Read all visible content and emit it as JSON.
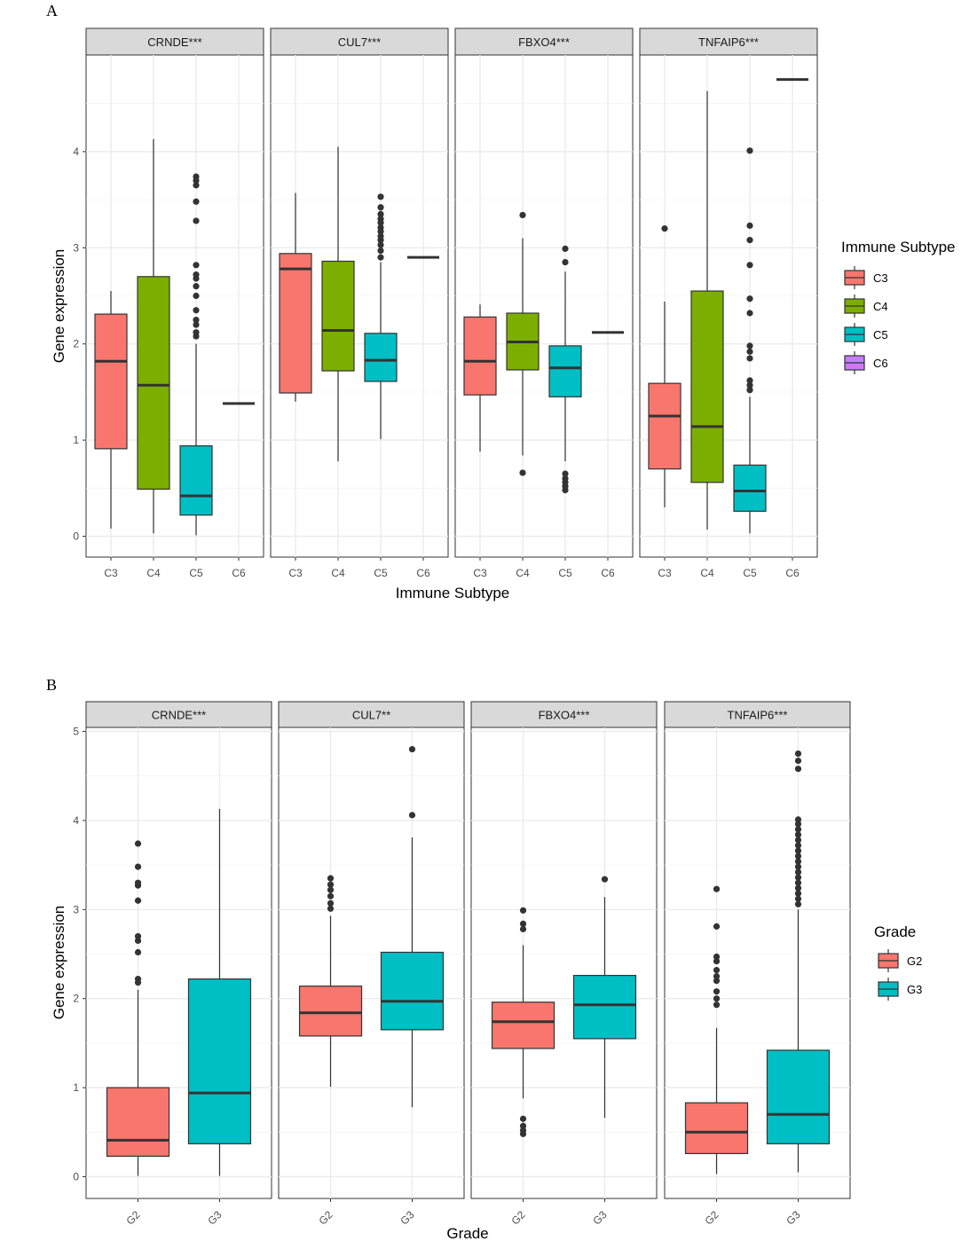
{
  "chart_data": [
    {
      "type": "box",
      "panel_label": "A",
      "xlabel": "Immune Subtype",
      "ylabel": "Gene expression",
      "ylim": [
        -0.2,
        5.0
      ],
      "yticks": [
        0,
        1,
        2,
        3,
        4
      ],
      "categories": [
        "C3",
        "C4",
        "C5",
        "C6"
      ],
      "legend": {
        "title": "Immune Subtype",
        "position": "right",
        "items": [
          {
            "label": "C3",
            "color": "#F8766D"
          },
          {
            "label": "C4",
            "color": "#7CAE00"
          },
          {
            "label": "C5",
            "color": "#00BFC4"
          },
          {
            "label": "C6",
            "color": "#C77CFF"
          }
        ]
      },
      "facets": [
        {
          "title": "CRNDE***",
          "boxes": [
            {
              "category": "C3",
              "lower_whisker": 0.08,
              "q1": 0.91,
              "median": 1.82,
              "q3": 2.31,
              "upper_whisker": 2.55,
              "outliers": []
            },
            {
              "category": "C4",
              "lower_whisker": 0.03,
              "q1": 0.49,
              "median": 1.57,
              "q3": 2.7,
              "upper_whisker": 4.13,
              "outliers": []
            },
            {
              "category": "C5",
              "lower_whisker": 0.01,
              "q1": 0.22,
              "median": 0.42,
              "q3": 0.94,
              "upper_whisker": 2.0,
              "outliers": [
                2.08,
                2.12,
                2.2,
                2.25,
                2.35,
                2.5,
                2.6,
                2.68,
                2.72,
                2.82,
                3.28,
                3.48,
                3.65,
                3.7,
                3.74
              ]
            },
            {
              "category": "C6",
              "lower_whisker": 1.38,
              "q1": 1.38,
              "median": 1.38,
              "q3": 1.38,
              "upper_whisker": 1.38,
              "outliers": []
            }
          ]
        },
        {
          "title": "CUL7***",
          "boxes": [
            {
              "category": "C3",
              "lower_whisker": 1.4,
              "q1": 1.49,
              "median": 2.78,
              "q3": 2.94,
              "upper_whisker": 3.57,
              "outliers": []
            },
            {
              "category": "C4",
              "lower_whisker": 0.78,
              "q1": 1.72,
              "median": 2.14,
              "q3": 2.86,
              "upper_whisker": 4.05,
              "outliers": []
            },
            {
              "category": "C5",
              "lower_whisker": 1.01,
              "q1": 1.61,
              "median": 1.83,
              "q3": 2.11,
              "upper_whisker": 2.85,
              "outliers": [
                2.9,
                2.97,
                3.03,
                3.08,
                3.12,
                3.17,
                3.21,
                3.26,
                3.3,
                3.35,
                3.42,
                3.53
              ]
            },
            {
              "category": "C6",
              "lower_whisker": 2.9,
              "q1": 2.9,
              "median": 2.9,
              "q3": 2.9,
              "upper_whisker": 2.9,
              "outliers": []
            }
          ]
        },
        {
          "title": "FBXO4***",
          "boxes": [
            {
              "category": "C3",
              "lower_whisker": 0.88,
              "q1": 1.47,
              "median": 1.82,
              "q3": 2.28,
              "upper_whisker": 2.41,
              "outliers": []
            },
            {
              "category": "C4",
              "lower_whisker": 0.84,
              "q1": 1.73,
              "median": 2.02,
              "q3": 2.32,
              "upper_whisker": 3.1,
              "outliers": [
                0.66,
                3.34
              ]
            },
            {
              "category": "C5",
              "lower_whisker": 0.78,
              "q1": 1.45,
              "median": 1.75,
              "q3": 1.98,
              "upper_whisker": 2.75,
              "outliers": [
                0.48,
                0.52,
                0.56,
                0.6,
                0.65,
                2.85,
                2.99
              ]
            },
            {
              "category": "C6",
              "lower_whisker": 2.12,
              "q1": 2.12,
              "median": 2.12,
              "q3": 2.12,
              "upper_whisker": 2.12,
              "outliers": []
            }
          ]
        },
        {
          "title": "TNFAIP6***",
          "boxes": [
            {
              "category": "C3",
              "lower_whisker": 0.3,
              "q1": 0.7,
              "median": 1.25,
              "q3": 1.59,
              "upper_whisker": 2.44,
              "outliers": [
                3.2
              ]
            },
            {
              "category": "C4",
              "lower_whisker": 0.07,
              "q1": 0.56,
              "median": 1.14,
              "q3": 2.55,
              "upper_whisker": 4.63,
              "outliers": []
            },
            {
              "category": "C5",
              "lower_whisker": 0.03,
              "q1": 0.26,
              "median": 0.47,
              "q3": 0.74,
              "upper_whisker": 1.45,
              "outliers": [
                1.52,
                1.57,
                1.62,
                1.85,
                1.92,
                1.98,
                2.32,
                2.47,
                2.82,
                3.08,
                3.23,
                4.01
              ]
            },
            {
              "category": "C6",
              "lower_whisker": 4.75,
              "q1": 4.75,
              "median": 4.75,
              "q3": 4.75,
              "upper_whisker": 4.75,
              "outliers": []
            }
          ]
        }
      ]
    },
    {
      "type": "box",
      "panel_label": "B",
      "xlabel": "Grade",
      "ylabel": "Gene expression",
      "ylim": [
        -0.2,
        5.0
      ],
      "yticks": [
        0,
        1,
        2,
        3,
        4,
        5
      ],
      "categories": [
        "G2",
        "G3"
      ],
      "legend": {
        "title": "Grade",
        "position": "right",
        "items": [
          {
            "label": "G2",
            "color": "#F8766D"
          },
          {
            "label": "G3",
            "color": "#00BFC4"
          }
        ]
      },
      "facets": [
        {
          "title": "CRNDE***",
          "boxes": [
            {
              "category": "G2",
              "lower_whisker": 0.01,
              "q1": 0.23,
              "median": 0.41,
              "q3": 1.0,
              "upper_whisker": 2.1,
              "outliers": [
                2.18,
                2.22,
                2.52,
                2.65,
                2.7,
                3.1,
                3.27,
                3.3,
                3.48,
                3.74
              ]
            },
            {
              "category": "G3",
              "lower_whisker": 0.01,
              "q1": 0.37,
              "median": 0.94,
              "q3": 2.22,
              "upper_whisker": 4.13,
              "outliers": []
            }
          ]
        },
        {
          "title": "CUL7**",
          "boxes": [
            {
              "category": "G2",
              "lower_whisker": 1.01,
              "q1": 1.58,
              "median": 1.84,
              "q3": 2.14,
              "upper_whisker": 2.93,
              "outliers": [
                3.01,
                3.07,
                3.15,
                3.22,
                3.28,
                3.35
              ]
            },
            {
              "category": "G3",
              "lower_whisker": 0.78,
              "q1": 1.65,
              "median": 1.97,
              "q3": 2.52,
              "upper_whisker": 3.81,
              "outliers": [
                4.06,
                4.8
              ]
            }
          ]
        },
        {
          "title": "FBXO4***",
          "boxes": [
            {
              "category": "G2",
              "lower_whisker": 0.88,
              "q1": 1.44,
              "median": 1.74,
              "q3": 1.96,
              "upper_whisker": 2.6,
              "outliers": [
                0.48,
                0.52,
                0.57,
                0.65,
                2.78,
                2.84,
                2.99
              ]
            },
            {
              "category": "G3",
              "lower_whisker": 0.66,
              "q1": 1.55,
              "median": 1.93,
              "q3": 2.26,
              "upper_whisker": 3.14,
              "outliers": [
                3.34
              ]
            }
          ]
        },
        {
          "title": "TNFAIP6***",
          "boxes": [
            {
              "category": "G2",
              "lower_whisker": 0.03,
              "q1": 0.26,
              "median": 0.5,
              "q3": 0.83,
              "upper_whisker": 1.67,
              "outliers": [
                1.93,
                2.0,
                2.08,
                2.2,
                2.25,
                2.32,
                2.42,
                2.47,
                2.81,
                3.23
              ]
            },
            {
              "category": "G3",
              "lower_whisker": 0.05,
              "q1": 0.37,
              "median": 0.7,
              "q3": 1.42,
              "upper_whisker": 3.0,
              "outliers": [
                3.06,
                3.12,
                3.18,
                3.24,
                3.3,
                3.36,
                3.42,
                3.48,
                3.54,
                3.6,
                3.66,
                3.72,
                3.78,
                3.84,
                3.9,
                3.96,
                4.01,
                4.58,
                4.67,
                4.75
              ]
            }
          ]
        }
      ]
    }
  ]
}
